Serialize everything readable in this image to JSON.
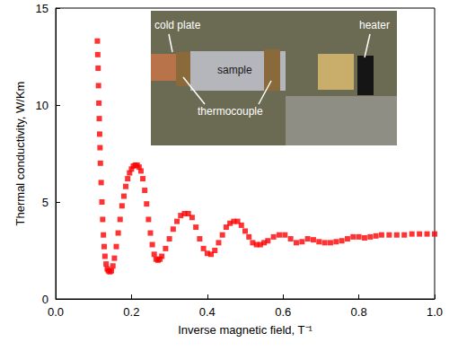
{
  "chart_data": {
    "type": "scatter",
    "x_label": "Inverse magnetic field, T⁻¹",
    "y_label": "Thermal conductivity, W/Km",
    "marker": "square",
    "color": "#ff0000",
    "grid": false,
    "xlim": [
      0,
      1
    ],
    "xticks": [
      {
        "value": 0,
        "label": "0.0"
      },
      0.2,
      0.4,
      0.6,
      0.8,
      {
        "value": 1,
        "label": "1.0"
      }
    ],
    "ylim": [
      0,
      15
    ],
    "yticks": [
      0,
      5,
      10,
      15
    ],
    "annotations": [
      "cold plate",
      "sample",
      "thermocouple",
      "heater"
    ],
    "x": [
      0.11,
      0.111,
      0.112,
      0.113,
      0.114,
      0.115,
      0.116,
      0.117,
      0.118,
      0.12,
      0.122,
      0.124,
      0.126,
      0.128,
      0.13,
      0.133,
      0.136,
      0.139,
      0.143,
      0.147,
      0.151,
      0.155,
      0.16,
      0.165,
      0.17,
      0.175,
      0.18,
      0.185,
      0.19,
      0.195,
      0.2,
      0.205,
      0.21,
      0.215,
      0.22,
      0.225,
      0.23,
      0.235,
      0.24,
      0.245,
      0.25,
      0.255,
      0.26,
      0.265,
      0.27,
      0.275,
      0.28,
      0.29,
      0.3,
      0.31,
      0.32,
      0.33,
      0.34,
      0.35,
      0.36,
      0.37,
      0.38,
      0.39,
      0.4,
      0.41,
      0.42,
      0.43,
      0.44,
      0.45,
      0.46,
      0.47,
      0.48,
      0.49,
      0.5,
      0.51,
      0.52,
      0.53,
      0.54,
      0.55,
      0.56,
      0.575,
      0.59,
      0.605,
      0.62,
      0.635,
      0.65,
      0.665,
      0.68,
      0.695,
      0.71,
      0.725,
      0.74,
      0.755,
      0.77,
      0.785,
      0.8,
      0.815,
      0.83,
      0.845,
      0.86,
      0.88,
      0.9,
      0.92,
      0.94,
      0.96,
      0.98,
      1.0
    ],
    "values": [
      13.3,
      12.6,
      11.9,
      11.0,
      10.1,
      9.3,
      8.5,
      7.8,
      7.0,
      6.0,
      5.0,
      4.1,
      3.3,
      2.7,
      2.2,
      1.8,
      1.55,
      1.45,
      1.4,
      1.45,
      1.7,
      2.1,
      2.7,
      3.4,
      4.1,
      4.8,
      5.3,
      5.8,
      6.2,
      6.5,
      6.7,
      6.85,
      6.9,
      6.9,
      6.8,
      6.6,
      6.2,
      5.6,
      4.9,
      4.1,
      3.4,
      2.8,
      2.3,
      2.05,
      2.0,
      2.05,
      2.2,
      2.6,
      3.1,
      3.6,
      4.0,
      4.3,
      4.4,
      4.4,
      4.2,
      3.7,
      3.1,
      2.6,
      2.35,
      2.3,
      2.5,
      2.9,
      3.3,
      3.7,
      3.9,
      4.0,
      4.0,
      3.8,
      3.5,
      3.2,
      2.9,
      2.8,
      2.8,
      2.9,
      3.0,
      3.2,
      3.3,
      3.3,
      3.1,
      2.9,
      2.95,
      3.1,
      3.05,
      2.95,
      2.9,
      2.9,
      2.95,
      3.0,
      3.1,
      3.2,
      3.2,
      3.15,
      3.2,
      3.25,
      3.3,
      3.3,
      3.3,
      3.3,
      3.35,
      3.35,
      3.35,
      3.35
    ]
  }
}
